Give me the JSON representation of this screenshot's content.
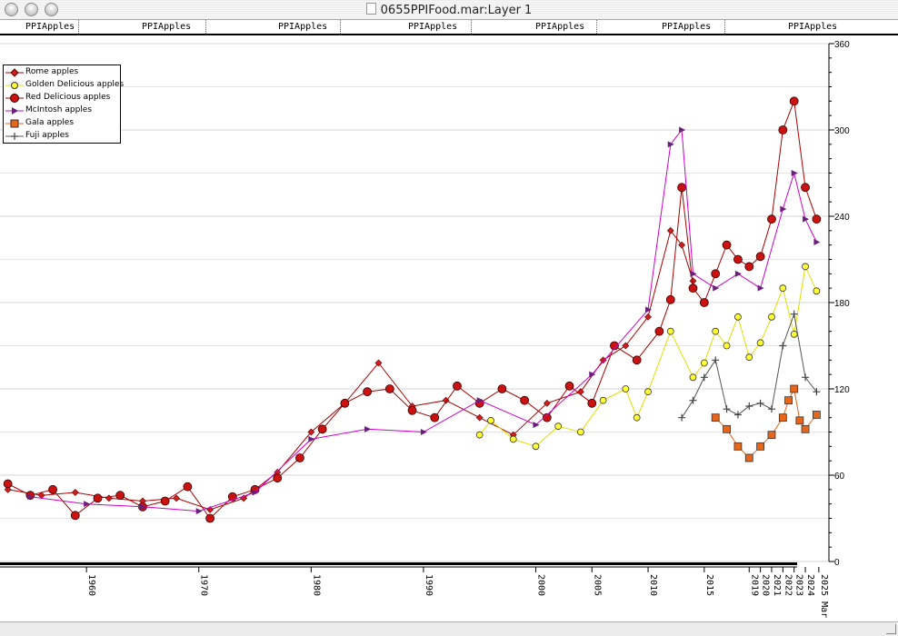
{
  "window": {
    "title": "0655PPIFood.mar:Layer 1"
  },
  "strip": {
    "label": "PPIApples"
  },
  "legend": [
    {
      "name": "Rome apples",
      "marker": "diamond",
      "color": "#cc1f1f",
      "line": "#aa0000"
    },
    {
      "name": "Golden Delicious apples",
      "marker": "circle-small",
      "color": "#ffff33",
      "line": "#e0e000"
    },
    {
      "name": "Red Delicious apples",
      "marker": "circle-large",
      "color": "#cc1111",
      "line": "#aa0000"
    },
    {
      "name": "McIntosh apples",
      "marker": "triangle",
      "color": "#6a1f7a",
      "line": "#cc00cc"
    },
    {
      "name": "Gala apples",
      "marker": "square",
      "color": "#e8661a",
      "line": "#e8661a"
    },
    {
      "name": "Fuji apples",
      "marker": "plus",
      "color": "#555555",
      "line": "#555555"
    }
  ],
  "chart_data": {
    "type": "line",
    "title": "",
    "xlabel": "",
    "ylabel": "",
    "ylim": [
      0,
      360
    ],
    "y_ticks": [
      0,
      60,
      120,
      180,
      240,
      300,
      360
    ],
    "x_tick_labels": [
      {
        "year": 1960,
        "label": "1960"
      },
      {
        "year": 1970,
        "label": "1970"
      },
      {
        "year": 1980,
        "label": "1980"
      },
      {
        "year": 1990,
        "label": "1990"
      },
      {
        "year": 2000,
        "label": "2000"
      },
      {
        "year": 2005,
        "label": "2005"
      },
      {
        "year": 2010,
        "label": "2010"
      },
      {
        "year": 2015,
        "label": "2015"
      },
      {
        "year": 2019,
        "label": "2019"
      },
      {
        "year": 2020,
        "label": "2020"
      },
      {
        "year": 2021,
        "label": "2021"
      },
      {
        "year": 2022,
        "label": "2022"
      },
      {
        "year": 2023,
        "label": "2023"
      },
      {
        "year": 2024,
        "label": "2024"
      },
      {
        "year": 2025.2,
        "label": "2025 Mar"
      }
    ],
    "grid": true,
    "legend_position": "top-left",
    "series": [
      {
        "name": "Rome apples",
        "x": [
          1953,
          1956,
          1959,
          1962,
          1965,
          1968,
          1971,
          1974,
          1977,
          1980,
          1983,
          1986,
          1989,
          1992,
          1995,
          1998,
          2001,
          2004,
          2006,
          2008,
          2010,
          2012,
          2013,
          2014
        ],
        "values": [
          50,
          46,
          48,
          44,
          42,
          44,
          36,
          44,
          62,
          90,
          110,
          138,
          108,
          112,
          100,
          88,
          110,
          118,
          140,
          150,
          170,
          230,
          220,
          195
        ]
      },
      {
        "name": "Golden Delicious apples",
        "x": [
          1995,
          1996,
          1998,
          2000,
          2002,
          2004,
          2006,
          2008,
          2009,
          2010,
          2012,
          2014,
          2015,
          2016,
          2017,
          2018,
          2019,
          2020,
          2021,
          2022,
          2023,
          2024,
          2025
        ],
        "values": [
          88,
          98,
          85,
          80,
          94,
          90,
          112,
          120,
          100,
          118,
          160,
          128,
          138,
          160,
          150,
          170,
          142,
          152,
          170,
          190,
          158,
          205,
          188
        ]
      },
      {
        "name": "Red Delicious apples",
        "x": [
          1953,
          1955,
          1957,
          1959,
          1961,
          1963,
          1965,
          1967,
          1969,
          1971,
          1973,
          1975,
          1977,
          1979,
          1981,
          1983,
          1985,
          1987,
          1989,
          1991,
          1993,
          1995,
          1997,
          1999,
          2001,
          2003,
          2005,
          2007,
          2009,
          2011,
          2012,
          2013,
          2014,
          2015,
          2016,
          2017,
          2018,
          2019,
          2020,
          2021,
          2022,
          2023,
          2024,
          2025
        ],
        "values": [
          54,
          46,
          50,
          32,
          44,
          46,
          38,
          42,
          52,
          30,
          45,
          50,
          58,
          72,
          92,
          110,
          118,
          120,
          105,
          100,
          122,
          110,
          120,
          112,
          100,
          122,
          110,
          150,
          140,
          160,
          182,
          260,
          190,
          180,
          200,
          220,
          210,
          205,
          212,
          238,
          300,
          320,
          260,
          238
        ]
      },
      {
        "name": "McIntosh apples",
        "x": [
          1955,
          1960,
          1965,
          1970,
          1975,
          1980,
          1985,
          1990,
          1995,
          2000,
          2005,
          2010,
          2012,
          2013,
          2014,
          2016,
          2018,
          2020,
          2022,
          2023,
          2024,
          2025
        ],
        "values": [
          45,
          40,
          38,
          35,
          48,
          85,
          92,
          90,
          112,
          95,
          130,
          175,
          290,
          300,
          200,
          190,
          200,
          190,
          245,
          270,
          238,
          222
        ]
      },
      {
        "name": "Gala apples",
        "x": [
          2016,
          2017,
          2018,
          2019,
          2020,
          2021,
          2022,
          2022.5,
          2023,
          2023.5,
          2024,
          2025
        ],
        "values": [
          100,
          92,
          80,
          72,
          80,
          88,
          100,
          112,
          120,
          98,
          92,
          102
        ]
      },
      {
        "name": "Fuji apples",
        "x": [
          2013,
          2014,
          2015,
          2016,
          2017,
          2018,
          2019,
          2020,
          2021,
          2022,
          2023,
          2024,
          2025
        ],
        "values": [
          100,
          112,
          128,
          140,
          106,
          102,
          108,
          110,
          106,
          150,
          172,
          128,
          118
        ]
      }
    ]
  }
}
